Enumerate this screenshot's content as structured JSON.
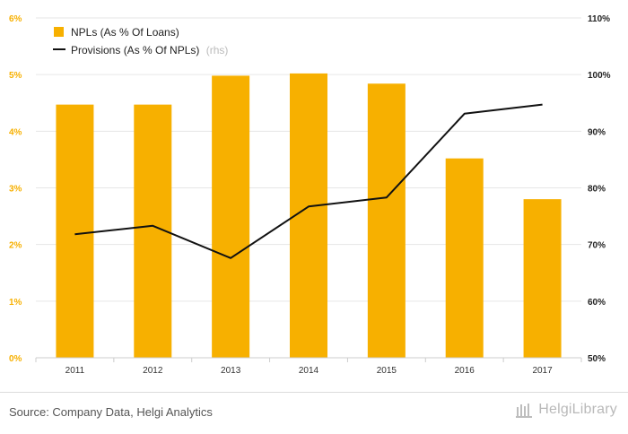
{
  "chart_data": {
    "type": "bar",
    "categories": [
      "2011",
      "2012",
      "2013",
      "2014",
      "2015",
      "2016",
      "2017"
    ],
    "series": [
      {
        "name": "NPLs (As % Of Loans)",
        "kind": "bar",
        "axis": "left",
        "color": "#f7b000",
        "values": [
          4.47,
          4.47,
          4.98,
          5.02,
          4.84,
          3.52,
          2.8
        ]
      },
      {
        "name": "Provisions (As % Of NPLs)",
        "kind": "line",
        "axis": "right",
        "color": "#111111",
        "values": [
          71.8,
          73.3,
          67.6,
          76.7,
          78.3,
          93.1,
          94.7
        ]
      }
    ],
    "legend_suffix": "(rhs)",
    "y_left": {
      "min": 0,
      "max": 6,
      "ticks": [
        "0%",
        "1%",
        "2%",
        "3%",
        "4%",
        "5%",
        "6%"
      ],
      "color": "#f7b000"
    },
    "y_right": {
      "min": 50,
      "max": 110,
      "ticks": [
        "50%",
        "60%",
        "70%",
        "80%",
        "90%",
        "100%",
        "110%"
      ]
    },
    "grid": true,
    "legend_position": "top-left"
  },
  "footer": {
    "source": "Source: Company Data, Helgi Analytics",
    "logo_text": "HelgiLibrary"
  }
}
